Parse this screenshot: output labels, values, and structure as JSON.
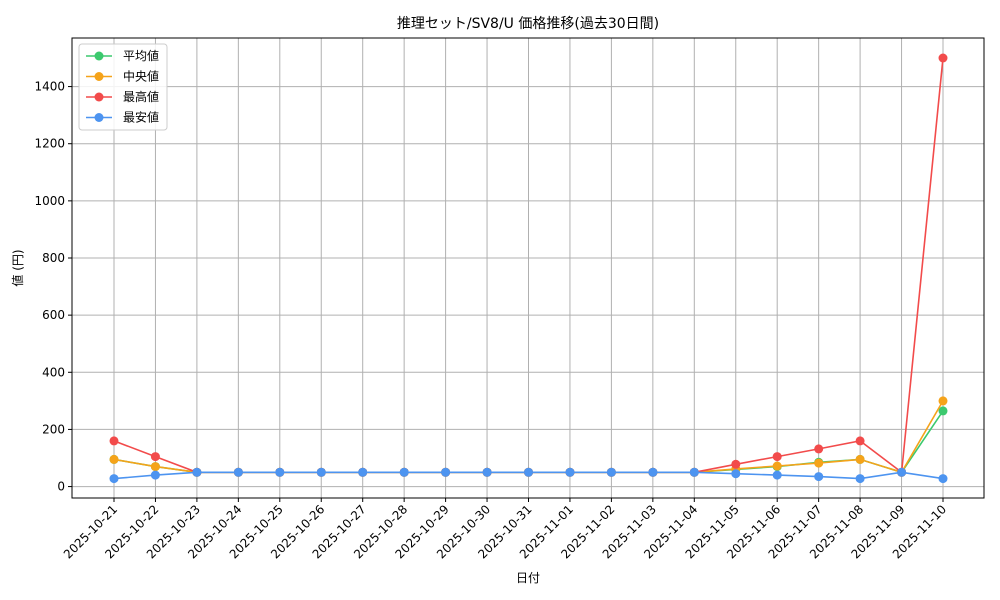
{
  "chart_data": {
    "type": "line",
    "title": "推理セット/SV8/U 価格推移(過去30日間)",
    "xlabel": "日付",
    "ylabel": "値 (円)",
    "categories": [
      "2025-10-21",
      "2025-10-22",
      "2025-10-23",
      "2025-10-24",
      "2025-10-25",
      "2025-10-26",
      "2025-10-27",
      "2025-10-28",
      "2025-10-29",
      "2025-10-30",
      "2025-10-31",
      "2025-11-01",
      "2025-11-02",
      "2025-11-03",
      "2025-11-04",
      "2025-11-05",
      "2025-11-06",
      "2025-11-07",
      "2025-11-08",
      "2025-11-09",
      "2025-11-10"
    ],
    "ylim": [
      -40,
      1570
    ],
    "yticks": [
      0,
      200,
      400,
      600,
      800,
      1000,
      1200,
      1400
    ],
    "grid": true,
    "legend_position": "top-left",
    "series": [
      {
        "name": "平均値",
        "color": "#3cc96e",
        "values": [
          95,
          70,
          50,
          50,
          50,
          50,
          50,
          50,
          50,
          50,
          50,
          50,
          50,
          50,
          50,
          60,
          70,
          85,
          95,
          50,
          265
        ]
      },
      {
        "name": "中央値",
        "color": "#f5a31a",
        "values": [
          95,
          70,
          50,
          50,
          50,
          50,
          50,
          50,
          50,
          50,
          50,
          50,
          50,
          50,
          50,
          62,
          72,
          82,
          95,
          50,
          300
        ]
      },
      {
        "name": "最高値",
        "color": "#f24b4b",
        "values": [
          160,
          105,
          50,
          50,
          50,
          50,
          50,
          50,
          50,
          50,
          50,
          50,
          50,
          50,
          50,
          78,
          105,
          132,
          160,
          50,
          1500
        ]
      },
      {
        "name": "最安値",
        "color": "#4d94f0",
        "values": [
          28,
          40,
          50,
          50,
          50,
          50,
          50,
          50,
          50,
          50,
          50,
          50,
          50,
          50,
          50,
          45,
          40,
          35,
          28,
          50,
          28
        ]
      }
    ]
  }
}
